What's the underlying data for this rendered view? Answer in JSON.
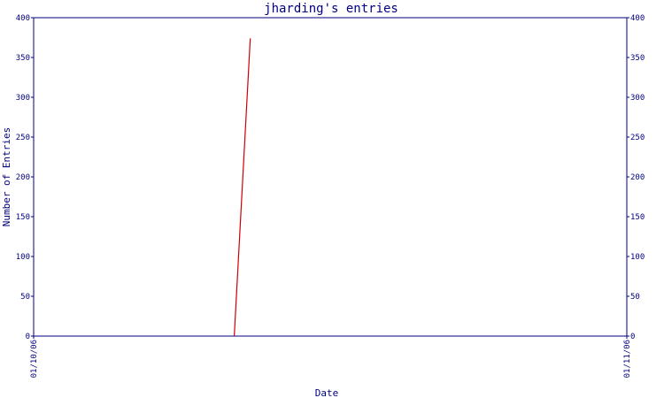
{
  "chart_data": {
    "type": "line",
    "title": "jharding's entries",
    "xlabel": "Date",
    "ylabel": "Number of Entries",
    "x_ticks": [
      "01/10/06",
      "01/11/06"
    ],
    "ylim": [
      0,
      400
    ],
    "y_ticks": [
      0,
      50,
      100,
      150,
      200,
      250,
      300,
      350,
      400
    ],
    "series": [
      {
        "x": [
          "2006-01-10T08:07",
          "2006-01-10T08:46"
        ],
        "y": [
          0,
          374
        ]
      }
    ],
    "colors": {
      "axis": "#000080",
      "line": "#cc0000",
      "text": "#000080"
    }
  }
}
